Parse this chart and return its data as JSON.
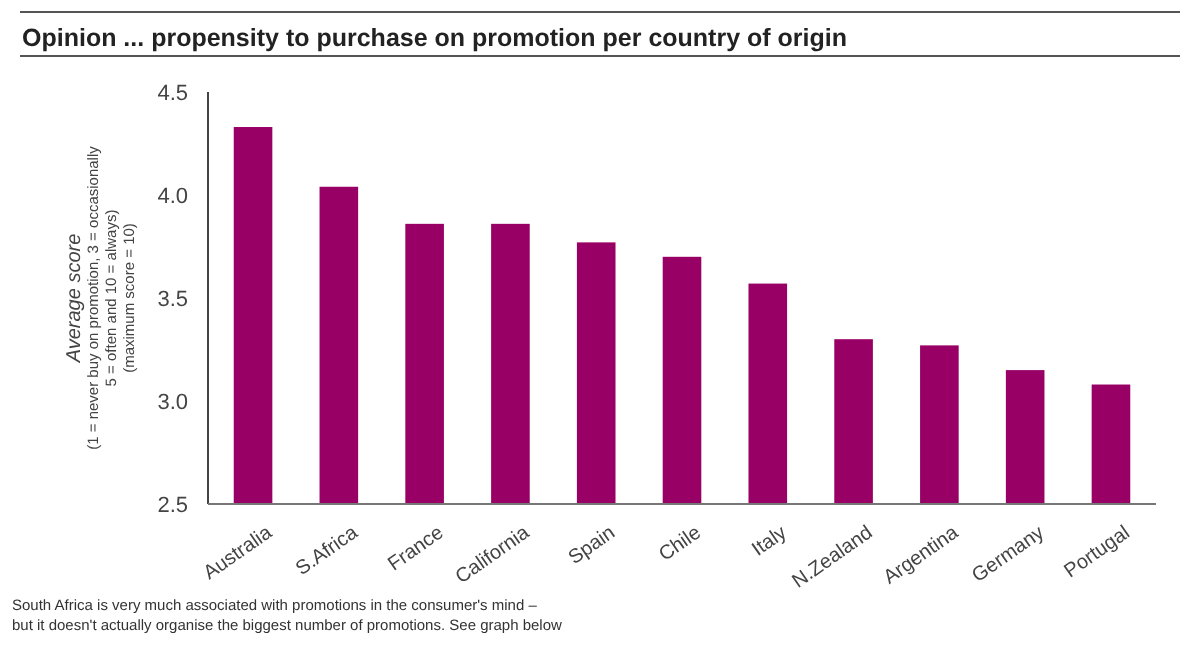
{
  "chart_data": {
    "type": "bar",
    "title": "Opinion ... propensity to purchase on promotion per country of origin",
    "ylabel": "Average score\n(1 = never buy on promotion, 3 = occasionally\n5 = often and 10 = always)\n(maximum score = 10)",
    "categories": [
      "Australia",
      "S.Africa",
      "France",
      "California",
      "Spain",
      "Chile",
      "Italy",
      "N.Zealand",
      "Argentina",
      "Germany",
      "Portugal"
    ],
    "values": [
      4.33,
      4.04,
      3.86,
      3.86,
      3.77,
      3.7,
      3.57,
      3.3,
      3.27,
      3.15,
      3.08
    ],
    "color": "#990066",
    "ylim": [
      2.5,
      4.5
    ],
    "yticks": [
      {
        "value": 2.5,
        "label": "2.5"
      },
      {
        "value": 3,
        "label": "3.0"
      },
      {
        "value": 3.5,
        "label": "3.5"
      },
      {
        "value": 4,
        "label": "4.0"
      },
      {
        "value": 4.5,
        "label": "4.5"
      }
    ],
    "grid": false,
    "annotations": [
      "South Africa is very much associated with promotions in the consumer's mind –\nbut it doesn't actually organise the biggest number of promotions. See graph below"
    ]
  }
}
